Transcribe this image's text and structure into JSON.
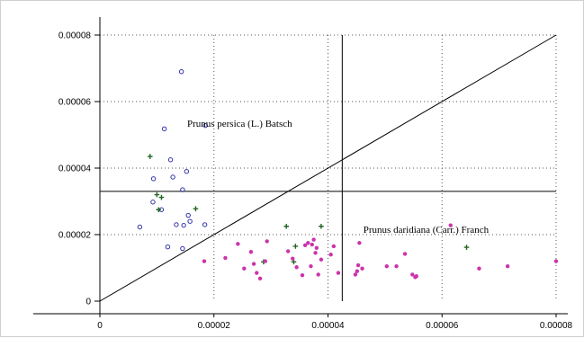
{
  "chart_data": {
    "type": "scatter",
    "title": "",
    "xlabel": "",
    "ylabel": "",
    "xlim": [
      0,
      8e-05
    ],
    "ylim": [
      0,
      8e-05
    ],
    "x_ticks": [
      "0",
      "0.00002",
      "0.00004",
      "0.00006",
      "0.00008"
    ],
    "y_ticks": [
      "0",
      "0.00002",
      "0.00004",
      "0.00006",
      "0.00008"
    ],
    "grid": "dotted",
    "annotations": [
      {
        "text": "Prunus persica (L.) Batsch",
        "x": 1.53e-05,
        "y": 5.25e-05
      },
      {
        "text": "Prunus daridiana (Carr.) Franch",
        "x": 4.62e-05,
        "y": 2.05e-05
      }
    ],
    "reference_lines": {
      "vertical_x": 4.25e-05,
      "horizontal_y": 3.3e-05,
      "diagonal": [
        [
          0,
          0
        ],
        [
          8e-05,
          8e-05
        ]
      ]
    },
    "series": [
      {
        "marker": "circle-open",
        "color": "#3333aa",
        "points": [
          [
            1.43e-05,
            6.9e-05
          ],
          [
            1.85e-05,
            5.28e-05
          ],
          [
            1.13e-05,
            5.18e-05
          ],
          [
            1.24e-05,
            4.25e-05
          ],
          [
            1.52e-05,
            3.9e-05
          ],
          [
            9.4e-06,
            3.68e-05
          ],
          [
            1.28e-05,
            3.73e-05
          ],
          [
            1.45e-05,
            3.35e-05
          ],
          [
            9.3e-06,
            2.98e-05
          ],
          [
            1.08e-05,
            2.75e-05
          ],
          [
            1.55e-05,
            2.58e-05
          ],
          [
            7e-06,
            2.23e-05
          ],
          [
            1.34e-05,
            2.3e-05
          ],
          [
            1.47e-05,
            2.28e-05
          ],
          [
            1.58e-05,
            2.4e-05
          ],
          [
            1.84e-05,
            2.3e-05
          ],
          [
            1.19e-05,
            1.63e-05
          ],
          [
            1.45e-05,
            1.58e-05
          ]
        ]
      },
      {
        "marker": "plus",
        "color": "#226622",
        "points": [
          [
            8.8e-06,
            4.35e-05
          ],
          [
            1e-05,
            3.2e-05
          ],
          [
            1.08e-05,
            3.12e-05
          ],
          [
            1.03e-05,
            2.75e-05
          ],
          [
            1.68e-05,
            2.78e-05
          ],
          [
            3.27e-05,
            2.25e-05
          ],
          [
            3.88e-05,
            2.25e-05
          ],
          [
            3.43e-05,
            1.65e-05
          ],
          [
            2.87e-05,
            1.18e-05
          ],
          [
            3.4e-05,
            1.18e-05
          ],
          [
            6.43e-05,
            1.62e-05
          ]
        ]
      },
      {
        "marker": "dot",
        "color": "#cc33aa",
        "points": [
          [
            1.83e-05,
            1.2e-05
          ],
          [
            2.2e-05,
            1.3e-05
          ],
          [
            2.42e-05,
            1.72e-05
          ],
          [
            2.53e-05,
            9.8e-06
          ],
          [
            2.65e-05,
            1.48e-05
          ],
          [
            2.7e-05,
            1.12e-05
          ],
          [
            2.75e-05,
            8.5e-06
          ],
          [
            2.81e-05,
            6.8e-06
          ],
          [
            2.9e-05,
            1.2e-05
          ],
          [
            2.93e-05,
            1.8e-05
          ],
          [
            3.3e-05,
            1.5e-05
          ],
          [
            3.38e-05,
            1.28e-05
          ],
          [
            3.45e-05,
            1.02e-05
          ],
          [
            3.55e-05,
            7.8e-06
          ],
          [
            3.6e-05,
            1.68e-05
          ],
          [
            3.65e-05,
            1.75e-05
          ],
          [
            3.7e-05,
            1.05e-05
          ],
          [
            3.72e-05,
            1.7e-05
          ],
          [
            3.75e-05,
            1.85e-05
          ],
          [
            3.78e-05,
            1.45e-05
          ],
          [
            3.8e-05,
            1.6e-05
          ],
          [
            3.83e-05,
            8e-06
          ],
          [
            3.88e-05,
            1.25e-05
          ],
          [
            4.05e-05,
            1.4e-05
          ],
          [
            4.1e-05,
            1.65e-05
          ],
          [
            4.18e-05,
            8.5e-06
          ],
          [
            4.48e-05,
            8e-06
          ],
          [
            4.51e-05,
            9e-06
          ],
          [
            4.53e-05,
            1.08e-05
          ],
          [
            4.55e-05,
            1.75e-05
          ],
          [
            4.6e-05,
            9.8e-06
          ],
          [
            5.03e-05,
            1.05e-05
          ],
          [
            5.2e-05,
            1.05e-05
          ],
          [
            5.35e-05,
            1.42e-05
          ],
          [
            5.48e-05,
            8e-06
          ],
          [
            5.53e-05,
            7.2e-06
          ],
          [
            5.55e-05,
            7.5e-06
          ],
          [
            6.15e-05,
            2.28e-05
          ],
          [
            6.65e-05,
            9.8e-06
          ],
          [
            7.15e-05,
            1.05e-05
          ],
          [
            8e-05,
            1.2e-05
          ]
        ]
      }
    ]
  }
}
